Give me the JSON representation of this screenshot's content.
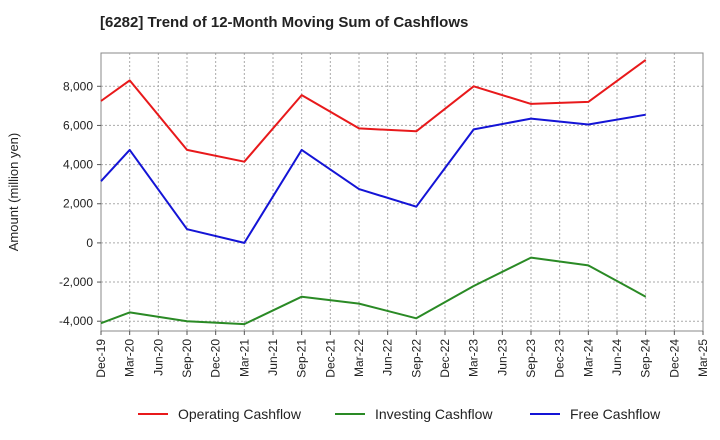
{
  "chart_data": {
    "type": "line",
    "title": "[6282]  Trend of 12-Month Moving Sum of Cashflows",
    "xlabel": "",
    "ylabel": "Amount (million yen)",
    "categories": [
      "Dec-19",
      "Mar-20",
      "Jun-20",
      "Sep-20",
      "Dec-20",
      "Mar-21",
      "Jun-21",
      "Sep-21",
      "Dec-21",
      "Mar-22",
      "Jun-22",
      "Sep-22",
      "Dec-22",
      "Mar-23",
      "Jun-23",
      "Sep-23",
      "Dec-23",
      "Mar-24",
      "Jun-24",
      "Sep-24",
      "Dec-24",
      "Mar-25"
    ],
    "ylim": [
      -4500,
      9700
    ],
    "yticks": [
      -4000,
      -2000,
      0,
      2000,
      4000,
      6000,
      8000
    ],
    "ytick_labels": [
      "-4,000",
      "-2,000",
      "0",
      "2,000",
      "4,000",
      "6,000",
      "8,000"
    ],
    "grid": true,
    "legend_position": "bottom",
    "series": [
      {
        "name": "Operating Cashflow",
        "color": "#e8191b",
        "points": [
          [
            "Dec-19",
            7250
          ],
          [
            "Mar-20",
            8300
          ],
          [
            "Sep-20",
            4750
          ],
          [
            "Mar-21",
            4150
          ],
          [
            "Sep-21",
            7550
          ],
          [
            "Mar-22",
            5850
          ],
          [
            "Sep-22",
            5700
          ],
          [
            "Mar-23",
            8000
          ],
          [
            "Sep-23",
            7100
          ],
          [
            "Mar-24",
            7200
          ],
          [
            "Sep-24",
            9350
          ]
        ]
      },
      {
        "name": "Investing Cashflow",
        "color": "#2a8a25",
        "points": [
          [
            "Dec-19",
            -4100
          ],
          [
            "Mar-20",
            -3550
          ],
          [
            "Sep-20",
            -4000
          ],
          [
            "Mar-21",
            -4150
          ],
          [
            "Sep-21",
            -2750
          ],
          [
            "Mar-22",
            -3100
          ],
          [
            "Sep-22",
            -3850
          ],
          [
            "Mar-23",
            -2200
          ],
          [
            "Sep-23",
            -750
          ],
          [
            "Mar-24",
            -1150
          ],
          [
            "Sep-24",
            -2750
          ]
        ]
      },
      {
        "name": "Free Cashflow",
        "color": "#1414d6",
        "points": [
          [
            "Dec-19",
            3150
          ],
          [
            "Mar-20",
            4750
          ],
          [
            "Sep-20",
            700
          ],
          [
            "Mar-21",
            0
          ],
          [
            "Sep-21",
            4750
          ],
          [
            "Mar-22",
            2750
          ],
          [
            "Sep-22",
            1850
          ],
          [
            "Mar-23",
            5800
          ],
          [
            "Sep-23",
            6350
          ],
          [
            "Mar-24",
            6050
          ],
          [
            "Sep-24",
            6550
          ]
        ]
      }
    ]
  }
}
